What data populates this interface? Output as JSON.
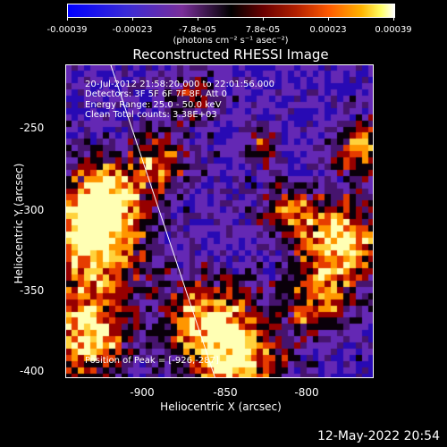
{
  "colorbar": {
    "ticks": [
      "-0.00039",
      "-0.00023",
      "-7.8e-05",
      "7.8e-05",
      "0.00023",
      "0.00039"
    ],
    "units": "(photons cm⁻² s⁻¹ asec⁻²)"
  },
  "title": "Reconstructed RHESSI Image",
  "info": {
    "time": "20-Jul-2012 21:58:20.000 to 22:01:56.000",
    "detectors": "Detectors: 3F 5F 6F 7F 8F, Att 0",
    "energy": "Energy Range: 25.0 - 50.0 keV",
    "clean": "Clean     Total counts: 3.38E+03"
  },
  "peak": "Position of Peak = [-926,-287]",
  "axes": {
    "ylabel": "Heliocentric Y (arcsec)",
    "xlabel": "Heliocentric X (arcsec)",
    "yticks": [
      "-250",
      "-300",
      "-350",
      "-400"
    ],
    "xticks": [
      "-900",
      "-850",
      "-800"
    ]
  },
  "timestamp": "12-May-2022 20:54",
  "chart_data": {
    "type": "heatmap",
    "title": "Reconstructed RHESSI Image",
    "xlabel": "Heliocentric X (arcsec)",
    "ylabel": "Heliocentric Y (arcsec)",
    "xlim": [
      -948,
      -810
    ],
    "ylim": [
      -404,
      -265
    ],
    "colorbar_range": [
      -0.00039,
      0.00039
    ],
    "peak": [
      -926,
      -287
    ],
    "limb_line": [
      [
        -922,
        -220
      ],
      [
        -848,
        -404
      ]
    ]
  }
}
